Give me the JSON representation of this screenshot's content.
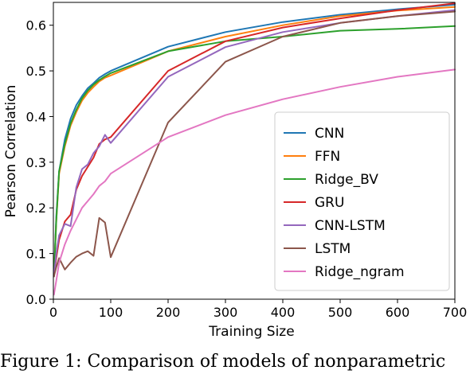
{
  "chart_data": {
    "type": "line",
    "title": "",
    "xlabel": "Training Size",
    "ylabel": "Pearson Correlation",
    "xlim": [
      0,
      700
    ],
    "ylim": [
      0,
      0.65
    ],
    "xticks": [
      0,
      100,
      200,
      300,
      400,
      500,
      600,
      700
    ],
    "yticks": [
      0.0,
      0.1,
      0.2,
      0.3,
      0.4,
      0.5,
      0.6
    ],
    "grid": false,
    "legend_position": "center-right",
    "series": [
      {
        "name": "CNN",
        "color": "#1f77b4",
        "x": [
          1,
          5,
          10,
          20,
          30,
          40,
          50,
          60,
          70,
          80,
          90,
          100,
          200,
          300,
          400,
          500,
          600,
          700
        ],
        "y": [
          0.05,
          0.18,
          0.28,
          0.35,
          0.395,
          0.425,
          0.445,
          0.462,
          0.473,
          0.485,
          0.493,
          0.5,
          0.553,
          0.585,
          0.607,
          0.623,
          0.635,
          0.645
        ]
      },
      {
        "name": "FFN",
        "color": "#ff7f0e",
        "x": [
          1,
          5,
          10,
          20,
          30,
          40,
          50,
          60,
          70,
          80,
          90,
          100,
          200,
          300,
          400,
          500,
          600,
          700
        ],
        "y": [
          0.05,
          0.17,
          0.275,
          0.335,
          0.38,
          0.41,
          0.435,
          0.452,
          0.465,
          0.477,
          0.485,
          0.49,
          0.543,
          0.575,
          0.6,
          0.62,
          0.632,
          0.64
        ]
      },
      {
        "name": "Ridge_BV",
        "color": "#2ca02c",
        "x": [
          1,
          5,
          10,
          20,
          30,
          40,
          50,
          60,
          70,
          80,
          90,
          100,
          200,
          300,
          400,
          500,
          600,
          700
        ],
        "y": [
          0.05,
          0.17,
          0.28,
          0.34,
          0.385,
          0.415,
          0.44,
          0.457,
          0.47,
          0.48,
          0.488,
          0.495,
          0.543,
          0.565,
          0.575,
          0.588,
          0.592,
          0.598
        ]
      },
      {
        "name": "GRU",
        "color": "#d62728",
        "x": [
          1,
          5,
          10,
          20,
          30,
          40,
          50,
          60,
          70,
          80,
          90,
          100,
          200,
          300,
          400,
          500,
          600,
          700
        ],
        "y": [
          0.05,
          0.09,
          0.13,
          0.17,
          0.185,
          0.24,
          0.27,
          0.29,
          0.31,
          0.34,
          0.35,
          0.355,
          0.5,
          0.565,
          0.595,
          0.615,
          0.633,
          0.648
        ]
      },
      {
        "name": "CNN-LSTM",
        "color": "#9467bd",
        "x": [
          1,
          5,
          10,
          20,
          30,
          40,
          50,
          60,
          70,
          80,
          90,
          100,
          200,
          300,
          400,
          500,
          600,
          700
        ],
        "y": [
          0.05,
          0.1,
          0.14,
          0.165,
          0.16,
          0.245,
          0.285,
          0.295,
          0.32,
          0.335,
          0.36,
          0.342,
          0.487,
          0.552,
          0.585,
          0.605,
          0.62,
          0.633
        ]
      },
      {
        "name": "LSTM",
        "color": "#8c564b",
        "x": [
          1,
          5,
          10,
          20,
          30,
          40,
          50,
          60,
          70,
          80,
          90,
          100,
          200,
          300,
          400,
          500,
          600,
          700
        ],
        "y": [
          0.05,
          0.07,
          0.09,
          0.065,
          0.08,
          0.093,
          0.1,
          0.105,
          0.095,
          0.178,
          0.168,
          0.092,
          0.387,
          0.52,
          0.575,
          0.605,
          0.62,
          0.63
        ]
      },
      {
        "name": "Ridge_ngram",
        "color": "#e377c2",
        "x": [
          1,
          5,
          10,
          20,
          30,
          40,
          50,
          60,
          70,
          80,
          90,
          100,
          200,
          300,
          400,
          500,
          600,
          700
        ],
        "y": [
          0.01,
          0.04,
          0.08,
          0.12,
          0.15,
          0.175,
          0.2,
          0.215,
          0.23,
          0.248,
          0.258,
          0.275,
          0.355,
          0.403,
          0.438,
          0.465,
          0.487,
          0.503
        ]
      }
    ]
  },
  "caption": "Figure 1: Comparison of models of nonparametric"
}
